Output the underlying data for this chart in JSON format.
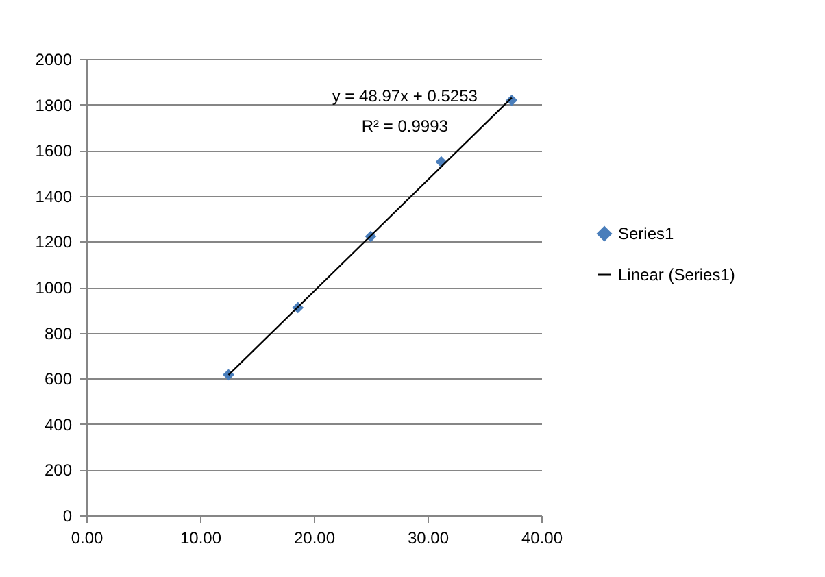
{
  "chart_data": {
    "type": "scatter",
    "grid": "y",
    "legend": "right",
    "xlim": [
      0,
      40
    ],
    "xticks": [
      {
        "value": 0,
        "label": "0.00"
      },
      {
        "value": 10,
        "label": "10.00"
      },
      {
        "value": 20,
        "label": "20.00"
      },
      {
        "value": 30,
        "label": "30.00"
      },
      {
        "value": 40,
        "label": "40.00"
      }
    ],
    "ylim": [
      0,
      2000
    ],
    "yticks": [
      0,
      200,
      400,
      600,
      800,
      1000,
      1200,
      1400,
      1600,
      1800,
      2000
    ],
    "annotations": [
      "y = 48.97x + 0.5253",
      "R² = 0.9993"
    ],
    "series": [
      {
        "name": "Series1",
        "type": "scatter",
        "marker": "diamond",
        "color": "#4a7ebb",
        "x": [
          12.5,
          18.6,
          25,
          31.2,
          37.4
        ],
        "values": [
          616,
          910,
          1222,
          1549,
          1819
        ]
      },
      {
        "name": "Linear (Series1)",
        "type": "line",
        "marker": "none",
        "line_style": "solid",
        "color": "#000000",
        "x": [
          12.5,
          37.4
        ],
        "values": [
          615,
          1830
        ]
      }
    ]
  }
}
